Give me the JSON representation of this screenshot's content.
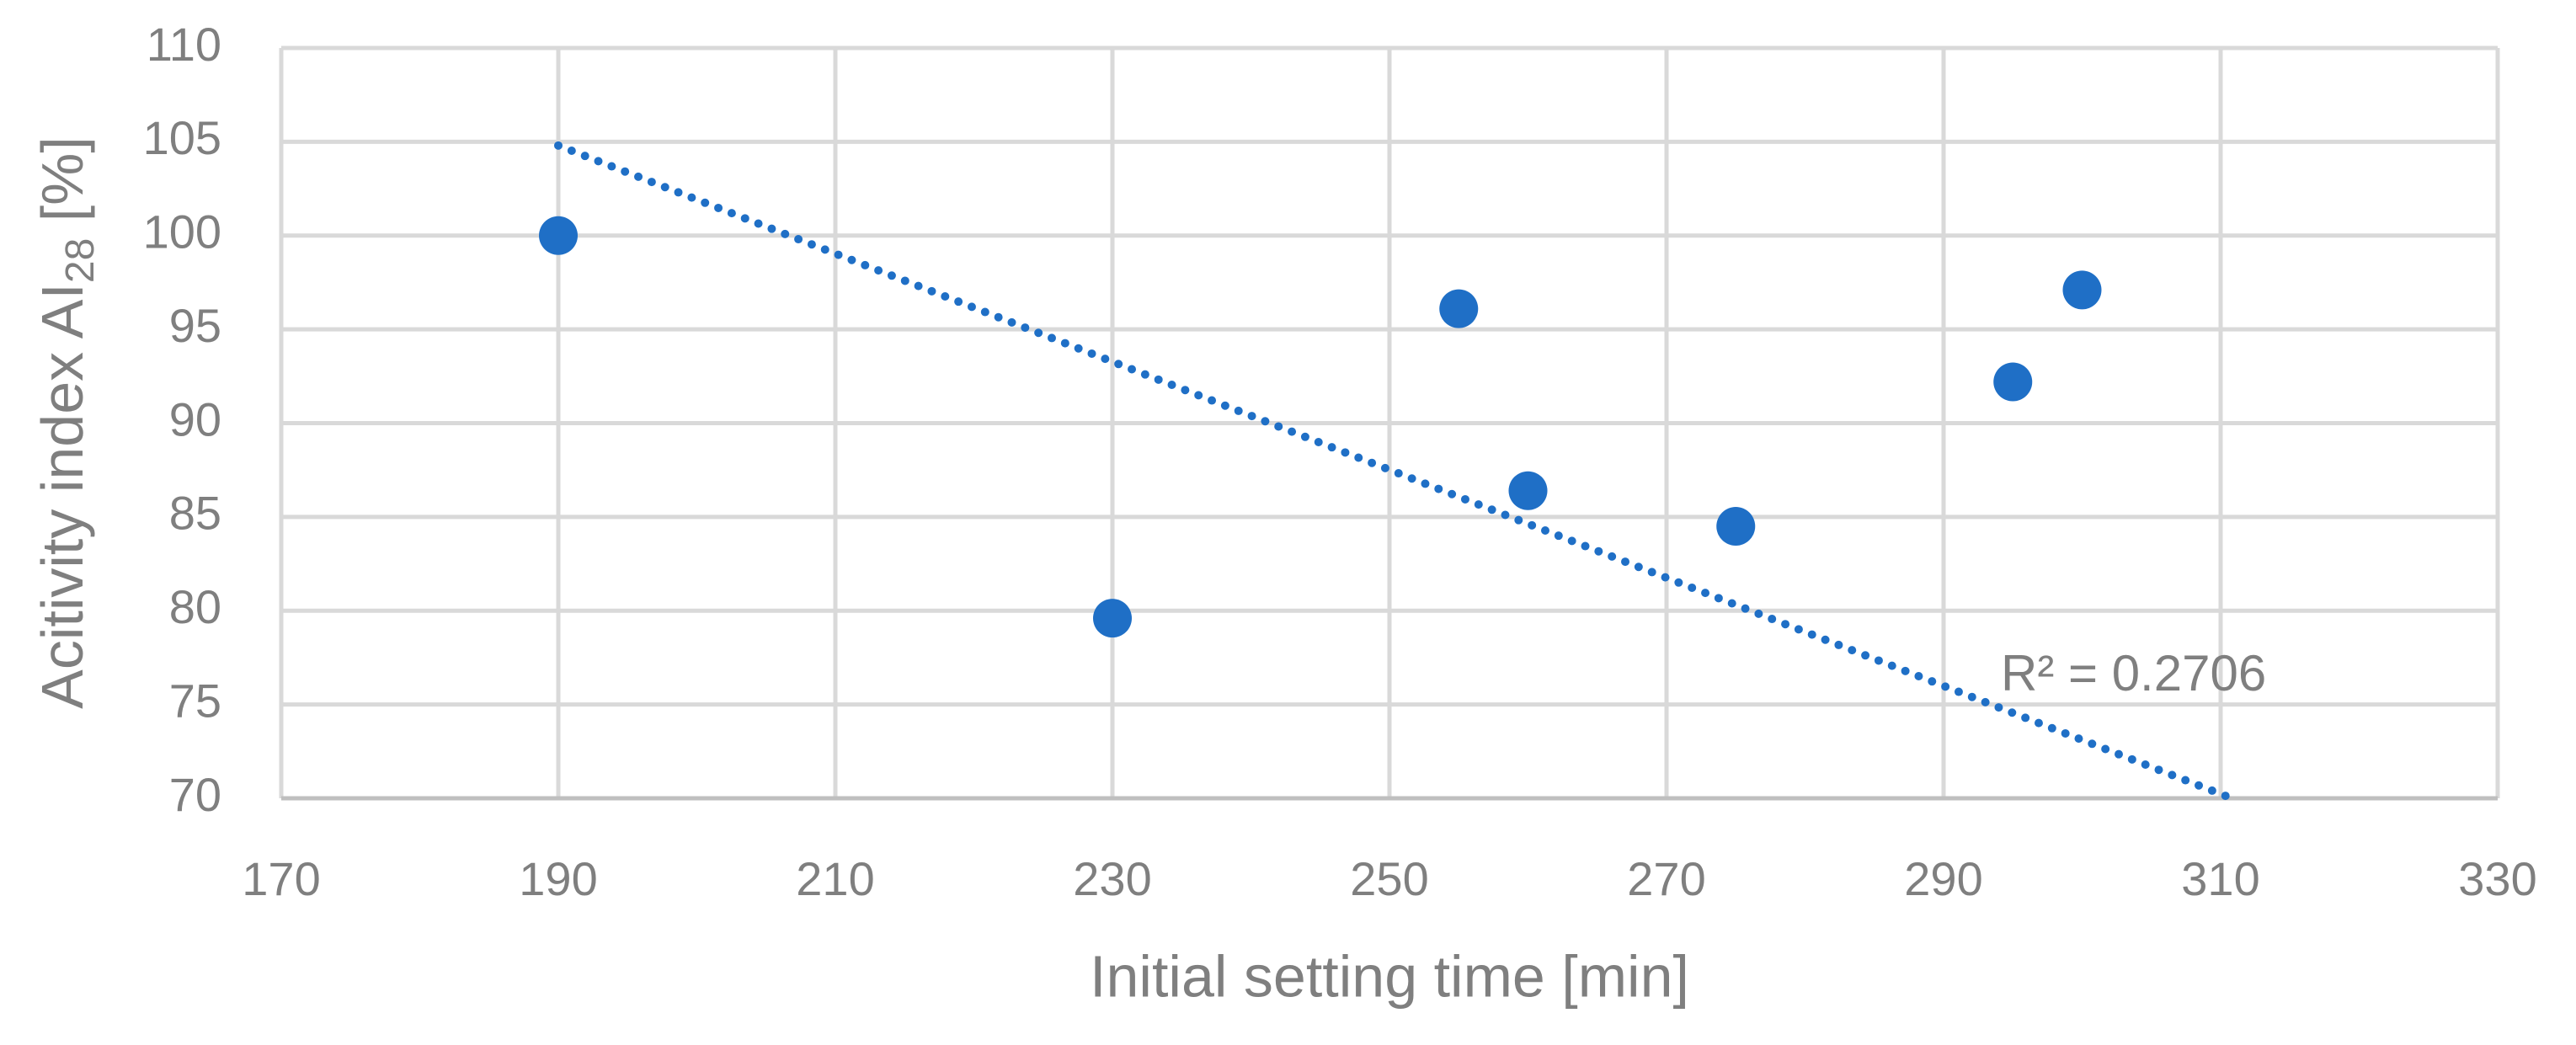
{
  "chart_data": {
    "type": "scatter",
    "x_label": "Initial setting time [min]",
    "y_label": {
      "main": "Acitivity index AI",
      "sub": "28",
      "end": " [%]"
    },
    "series": [
      {
        "name": "Activity index",
        "color": "#1f6fc6",
        "x": [
          190,
          230,
          255,
          260,
          275,
          295,
          300
        ],
        "values": [
          100,
          79.6,
          96.1,
          86.4,
          84.5,
          92.2,
          97.1
        ]
      }
    ],
    "trendline": {
      "style": "dotted",
      "color": "#1f6fc6",
      "x": [
        190,
        310.8
      ],
      "values": [
        104.8,
        70
      ]
    },
    "annotation": "R² = 0.2706",
    "xlim": [
      170,
      330
    ],
    "xticks": [
      170,
      190,
      210,
      230,
      250,
      270,
      290,
      310,
      330
    ],
    "ylim": [
      70,
      110
    ],
    "yticks": [
      70,
      75,
      80,
      85,
      90,
      95,
      100,
      105,
      110
    ],
    "grid": true
  }
}
